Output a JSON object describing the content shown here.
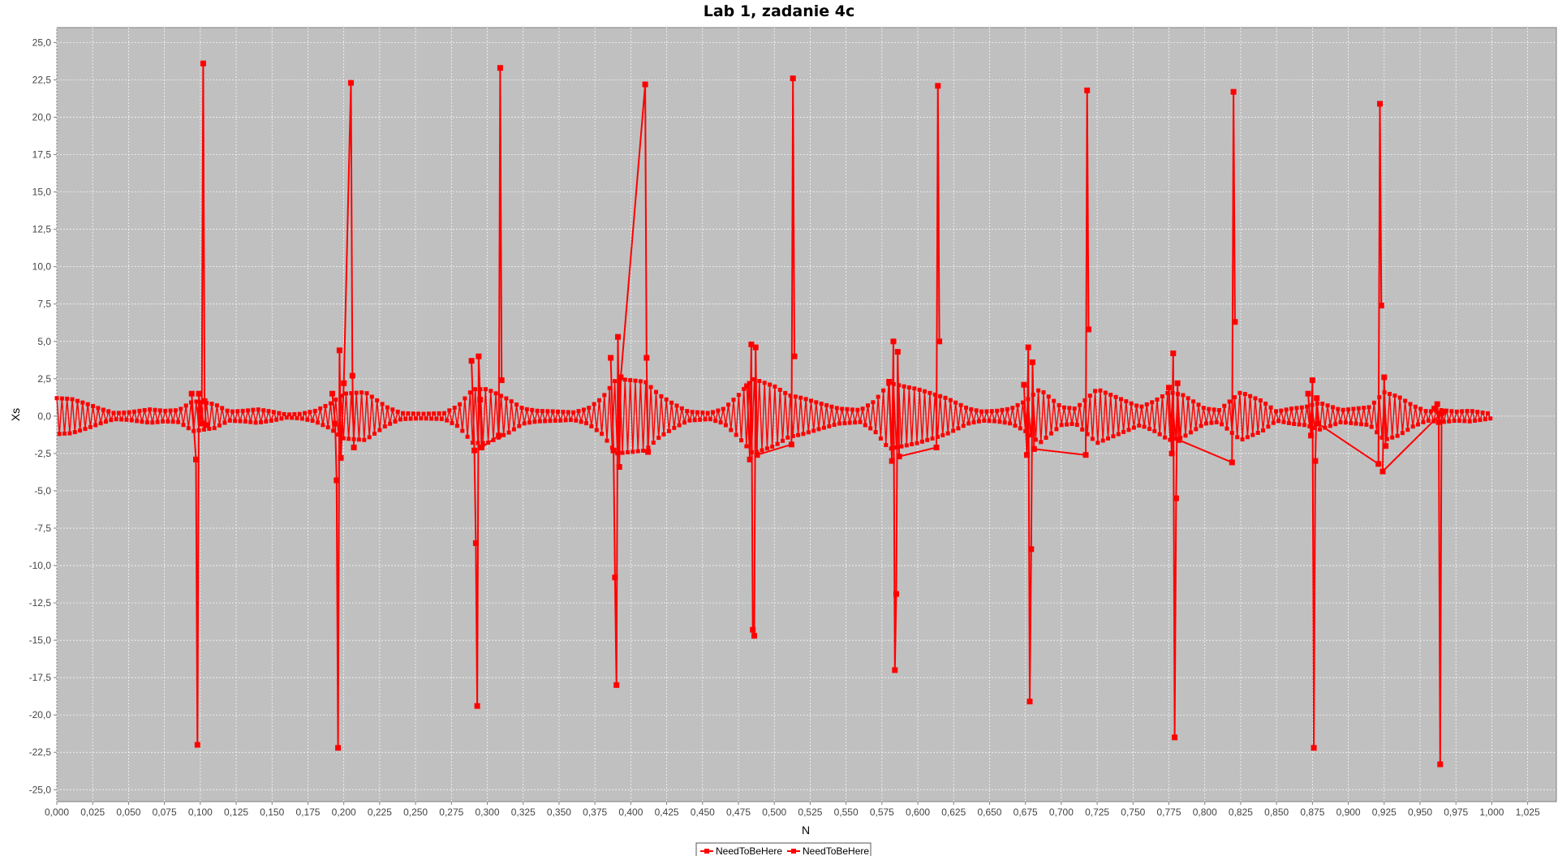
{
  "chart_data": {
    "type": "line",
    "title": "Lab 1, zadanie 4c",
    "xlabel": "N",
    "ylabel": "Xs",
    "xlim": [
      0,
      1.045
    ],
    "ylim": [
      -25.8,
      26.0
    ],
    "x_ticks": [
      0.0,
      0.025,
      0.05,
      0.075,
      0.1,
      0.125,
      0.15,
      0.175,
      0.2,
      0.225,
      0.25,
      0.275,
      0.3,
      0.325,
      0.35,
      0.375,
      0.4,
      0.425,
      0.45,
      0.475,
      0.5,
      0.525,
      0.55,
      0.575,
      0.6,
      0.625,
      0.65,
      0.675,
      0.7,
      0.725,
      0.75,
      0.775,
      0.8,
      0.825,
      0.85,
      0.875,
      0.9,
      0.925,
      0.95,
      0.975,
      1.0,
      1.025
    ],
    "x_tick_labels": [
      "0,000",
      "0,025",
      "0,050",
      "0,075",
      "0,100",
      "0,125",
      "0,150",
      "0,175",
      "0,200",
      "0,225",
      "0,250",
      "0,275",
      "0,300",
      "0,325",
      "0,350",
      "0,375",
      "0,400",
      "0,425",
      "0,450",
      "0,475",
      "0,500",
      "0,525",
      "0,550",
      "0,575",
      "0,600",
      "0,625",
      "0,650",
      "0,675",
      "0,700",
      "0,725",
      "0,750",
      "0,775",
      "0,800",
      "0,825",
      "0,850",
      "0,875",
      "0,900",
      "0,925",
      "0,950",
      "0,975",
      "1,000",
      "1,025"
    ],
    "y_ticks": [
      25.0,
      22.5,
      20.0,
      17.5,
      15.0,
      12.5,
      10.0,
      7.5,
      5.0,
      2.5,
      0.0,
      -2.5,
      -5.0,
      -7.5,
      -10.0,
      -12.5,
      -15.0,
      -17.5,
      -20.0,
      -22.5,
      -25.0
    ],
    "y_tick_labels": [
      "25,0",
      "22,5",
      "20,0",
      "17,5",
      "15,0",
      "12,5",
      "10,0",
      "7,5",
      "5,0",
      "2,5",
      "0,0",
      "-2,5",
      "-5,0",
      "-7,5",
      "-10,0",
      "-12,5",
      "-15,0",
      "-17,5",
      "-20,0",
      "-22,5",
      "-25,0"
    ],
    "grid": true,
    "legend_position": "bottom-center",
    "series": [
      {
        "name": "NeedToBeHere",
        "color": "#ff0000",
        "marker": "square",
        "envelope_points": [
          [
            0.0,
            1.2
          ],
          [
            0.01,
            1.15
          ],
          [
            0.02,
            0.85
          ],
          [
            0.03,
            0.5
          ],
          [
            0.04,
            0.2
          ],
          [
            0.05,
            0.25
          ],
          [
            0.065,
            0.45
          ],
          [
            0.075,
            0.35
          ],
          [
            0.085,
            0.4
          ],
          [
            0.095,
            1.0
          ],
          [
            0.11,
            0.8
          ],
          [
            0.12,
            0.3
          ],
          [
            0.13,
            0.35
          ],
          [
            0.14,
            0.45
          ],
          [
            0.15,
            0.3
          ],
          [
            0.16,
            0.1
          ],
          [
            0.17,
            0.15
          ],
          [
            0.18,
            0.35
          ],
          [
            0.19,
            0.8
          ],
          [
            0.2,
            1.5
          ],
          [
            0.215,
            1.6
          ],
          [
            0.23,
            0.6
          ],
          [
            0.24,
            0.2
          ],
          [
            0.255,
            0.15
          ],
          [
            0.27,
            0.2
          ],
          [
            0.28,
            0.7
          ],
          [
            0.29,
            1.8
          ],
          [
            0.3,
            1.8
          ],
          [
            0.315,
            1.1
          ],
          [
            0.325,
            0.5
          ],
          [
            0.335,
            0.35
          ],
          [
            0.35,
            0.3
          ],
          [
            0.36,
            0.25
          ],
          [
            0.37,
            0.5
          ],
          [
            0.38,
            1.2
          ],
          [
            0.39,
            2.5
          ],
          [
            0.41,
            2.3
          ],
          [
            0.42,
            1.4
          ],
          [
            0.43,
            0.8
          ],
          [
            0.44,
            0.3
          ],
          [
            0.455,
            0.2
          ],
          [
            0.465,
            0.5
          ],
          [
            0.475,
            1.4
          ],
          [
            0.485,
            2.5
          ],
          [
            0.5,
            2.0
          ],
          [
            0.51,
            1.4
          ],
          [
            0.52,
            1.2
          ],
          [
            0.53,
            0.9
          ],
          [
            0.545,
            0.5
          ],
          [
            0.56,
            0.4
          ],
          [
            0.57,
            1.0
          ],
          [
            0.58,
            2.2
          ],
          [
            0.6,
            1.8
          ],
          [
            0.62,
            1.2
          ],
          [
            0.635,
            0.5
          ],
          [
            0.645,
            0.3
          ],
          [
            0.655,
            0.35
          ],
          [
            0.665,
            0.5
          ],
          [
            0.675,
            1.0
          ],
          [
            0.685,
            1.8
          ],
          [
            0.7,
            0.6
          ],
          [
            0.71,
            0.5
          ],
          [
            0.725,
            1.8
          ],
          [
            0.74,
            1.2
          ],
          [
            0.755,
            0.6
          ],
          [
            0.765,
            1.0
          ],
          [
            0.775,
            1.6
          ],
          [
            0.785,
            1.4
          ],
          [
            0.8,
            0.5
          ],
          [
            0.81,
            0.4
          ],
          [
            0.825,
            1.6
          ],
          [
            0.84,
            1.0
          ],
          [
            0.85,
            0.3
          ],
          [
            0.86,
            0.5
          ],
          [
            0.87,
            0.6
          ],
          [
            0.88,
            0.9
          ],
          [
            0.895,
            0.4
          ],
          [
            0.905,
            0.5
          ],
          [
            0.915,
            0.6
          ],
          [
            0.925,
            1.6
          ],
          [
            0.935,
            1.3
          ],
          [
            0.945,
            0.7
          ],
          [
            0.955,
            0.3
          ],
          [
            0.965,
            0.4
          ],
          [
            0.975,
            0.3
          ],
          [
            0.985,
            0.35
          ],
          [
            1.0,
            0.15
          ]
        ],
        "bursts": [
          {
            "x": [
              0.094,
              0.097,
              0.098,
              0.099,
              0.1,
              0.101,
              0.102,
              0.103,
              0.104
            ],
            "y": [
              1.5,
              -2.9,
              -22.0,
              1.5,
              0.4,
              -0.5,
              23.6,
              1.0,
              -0.6
            ]
          },
          {
            "x": [
              0.192,
              0.194,
              0.195,
              0.196,
              0.197,
              0.198,
              0.2,
              0.205,
              0.206,
              0.207
            ],
            "y": [
              1.5,
              -0.5,
              -4.3,
              -22.2,
              4.4,
              -2.8,
              2.2,
              22.3,
              2.7,
              -2.1
            ]
          },
          {
            "x": [
              0.289,
              0.291,
              0.292,
              0.293,
              0.294,
              0.295,
              0.296,
              0.308,
              0.309,
              0.31
            ],
            "y": [
              3.7,
              -2.3,
              -8.5,
              -19.4,
              4.0,
              1.1,
              -2.1,
              -1.3,
              23.3,
              2.4
            ]
          },
          {
            "x": [
              0.386,
              0.388,
              0.389,
              0.39,
              0.391,
              0.392,
              0.393,
              0.41,
              0.411,
              0.412
            ],
            "y": [
              3.9,
              -2.3,
              -10.8,
              -18.0,
              5.3,
              -3.4,
              2.6,
              22.2,
              3.9,
              -2.4
            ]
          },
          {
            "x": [
              0.481,
              0.483,
              0.484,
              0.485,
              0.486,
              0.487,
              0.488,
              0.512,
              0.513,
              0.514
            ],
            "y": [
              2.0,
              -2.9,
              4.8,
              -14.3,
              -14.7,
              4.6,
              -2.6,
              -1.9,
              22.6,
              4.0
            ]
          },
          {
            "x": [
              0.58,
              0.582,
              0.583,
              0.584,
              0.585,
              0.586,
              0.587,
              0.613,
              0.614,
              0.615
            ],
            "y": [
              2.3,
              -3.0,
              5.0,
              -17.0,
              -11.9,
              4.3,
              -2.7,
              -2.1,
              22.1,
              5.0
            ]
          },
          {
            "x": [
              0.674,
              0.676,
              0.677,
              0.678,
              0.679,
              0.68,
              0.681,
              0.717,
              0.718,
              0.719
            ],
            "y": [
              2.1,
              -2.6,
              4.6,
              -19.1,
              -8.9,
              3.6,
              -2.2,
              -2.6,
              21.8,
              5.8
            ]
          },
          {
            "x": [
              0.775,
              0.777,
              0.778,
              0.779,
              0.78,
              0.781,
              0.782,
              0.819,
              0.82,
              0.821
            ],
            "y": [
              1.9,
              -2.5,
              4.2,
              -21.5,
              -5.5,
              2.2,
              -1.6,
              -3.1,
              21.7,
              6.3
            ]
          },
          {
            "x": [
              0.872,
              0.874,
              0.875,
              0.876,
              0.877,
              0.878,
              0.879,
              0.921,
              0.922,
              0.923
            ],
            "y": [
              1.5,
              -1.3,
              2.4,
              -22.2,
              -3.0,
              1.2,
              -0.5,
              -3.2,
              20.9,
              7.4
            ]
          },
          {
            "x": [
              0.96,
              0.962,
              0.963,
              0.964,
              0.965,
              0.966,
              0.924,
              0.925,
              0.926
            ],
            "y": [
              0.5,
              0.8,
              -0.4,
              -23.3,
              0.2,
              0.3,
              -3.7,
              2.6,
              -2.0
            ]
          }
        ]
      }
    ],
    "legend": [
      {
        "label": "NeedToBeHere",
        "color": "#ff0000"
      },
      {
        "label": "NeedToBeHere",
        "color": "#ff0000"
      }
    ]
  }
}
